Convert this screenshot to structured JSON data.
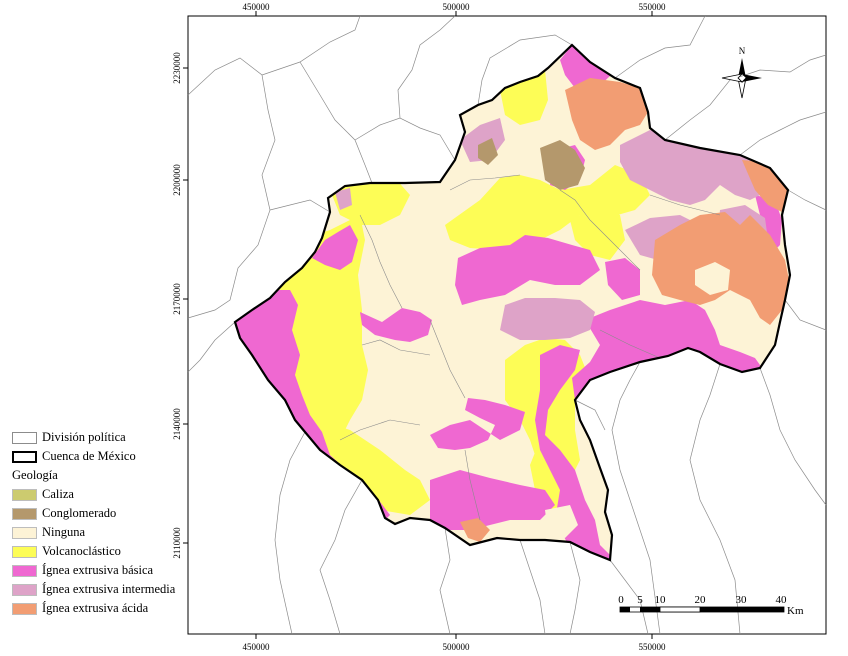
{
  "map": {
    "x_ticks": [
      "450000",
      "500000",
      "550000"
    ],
    "y_ticks": [
      "2230000",
      "2200000",
      "2170000",
      "2140000",
      "2110000"
    ],
    "north_label": "N",
    "scale_labels": [
      "0",
      "5",
      "10",
      "20",
      "30",
      "40"
    ],
    "scale_unit": "Km"
  },
  "legend": {
    "items_top": [
      {
        "label": "División política",
        "style": "thin"
      },
      {
        "label": "Cuenca de México",
        "style": "thick"
      }
    ],
    "heading": "Geología",
    "geology": [
      {
        "label": "Caliza",
        "color": "#cccb6f"
      },
      {
        "label": "Conglomerado",
        "color": "#b4986c"
      },
      {
        "label": "Ninguna",
        "color": "#fdf3d6"
      },
      {
        "label": "Volcanoclástico",
        "color": "#fdfd56"
      },
      {
        "label": "Ígnea extrusiva básica",
        "color": "#ef68d1"
      },
      {
        "label": "Ígnea extrusiva intermedia",
        "color": "#dea3c8"
      },
      {
        "label": "Ígnea extrusiva ácida",
        "color": "#f29d73"
      }
    ]
  }
}
